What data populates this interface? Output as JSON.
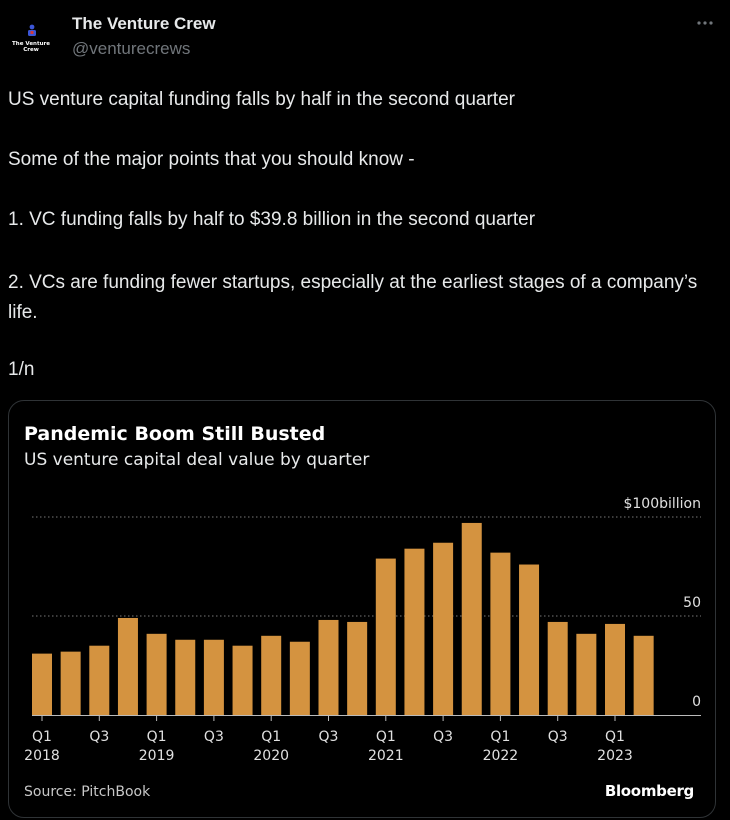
{
  "account": {
    "name": "The Venture Crew",
    "handle": "@venturecrews",
    "avatar_text": "The Venture Crew"
  },
  "tweet": {
    "paragraphs": [
      "US venture capital funding falls by half in the second quarter",
      "Some of the major points that you should know -",
      "1. VC funding falls by half to $39.8 billion in the second quarter",
      "2. VCs are funding fewer startups, especially at the earliest stages of a company’s life.",
      "1/n"
    ]
  },
  "card": {
    "source": "Source: PitchBook",
    "brand": "Bloomberg"
  },
  "colors": {
    "bar": "#d49340",
    "background": "#000000",
    "text": "#e7e9ea",
    "muted": "#71767b"
  },
  "chart_data": {
    "type": "bar",
    "title": "Pandemic Boom Still Busted",
    "subtitle": "US venture capital deal value by quarter",
    "y_tick_labels": [
      "$100billion",
      "50",
      "0"
    ],
    "y_ticks": [
      100,
      50,
      0
    ],
    "ylim": [
      0,
      100
    ],
    "x_tick_labels": [
      "Q1",
      "Q3",
      "Q1",
      "Q3",
      "Q1",
      "Q3",
      "Q1",
      "Q3",
      "Q1",
      "Q3",
      "Q1"
    ],
    "year_labels": [
      "2018",
      "2019",
      "2020",
      "2021",
      "2022",
      "2023"
    ],
    "categories": [
      "2018 Q1",
      "2018 Q2",
      "2018 Q3",
      "2018 Q4",
      "2019 Q1",
      "2019 Q2",
      "2019 Q3",
      "2019 Q4",
      "2020 Q1",
      "2020 Q2",
      "2020 Q3",
      "2020 Q4",
      "2021 Q1",
      "2021 Q2",
      "2021 Q3",
      "2021 Q4",
      "2022 Q1",
      "2022 Q2",
      "2022 Q3",
      "2022 Q4",
      "2023 Q1",
      "2023 Q2"
    ],
    "values": [
      31,
      32,
      35,
      49,
      41,
      38,
      38,
      35,
      40,
      37,
      48,
      47,
      79,
      84,
      87,
      97,
      82,
      76,
      47,
      41,
      46,
      40
    ],
    "grid": true
  }
}
